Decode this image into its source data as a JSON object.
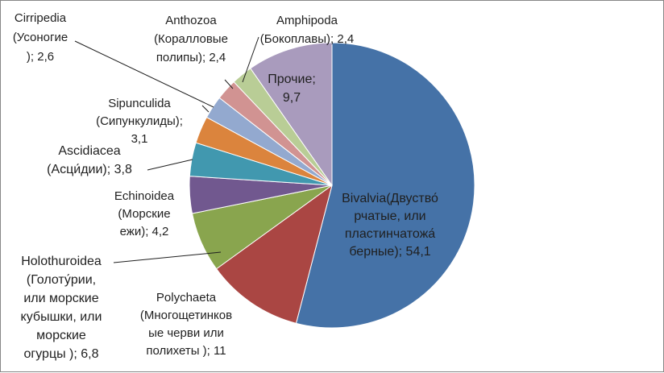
{
  "chart_data": {
    "type": "pie",
    "start_angle_deg": 0,
    "direction": "clockwise",
    "slices": [
      {
        "key": "bivalvia",
        "value": 54.1,
        "color": "#4572A7",
        "label_lines": [
          "Bivalvia(Двуство́",
          "рчатые, или",
          "пластинчатожа́",
          "берные); 54,1"
        ]
      },
      {
        "key": "polychaeta",
        "value": 11,
        "color": "#AA4643",
        "label_lines": [
          "Polychaeta",
          "(Многощетинков",
          "ые черви или",
          "полихеты ); 11"
        ]
      },
      {
        "key": "holothuroidea",
        "value": 6.8,
        "color": "#89A54E",
        "label_lines": [
          "Holothuroidea",
          "(Голоту́рии,",
          "или морские",
          "кубышки, или",
          "морские",
          "огурцы ); 6,8"
        ]
      },
      {
        "key": "echinoidea",
        "value": 4.2,
        "color": "#71588F",
        "label_lines": [
          "Echinoidea",
          "(Морские",
          "ежи); 4,2"
        ]
      },
      {
        "key": "ascidiacea",
        "value": 3.8,
        "color": "#4198AF",
        "label_lines": [
          "Ascidiacea",
          "(Асци́дии); 3,8"
        ]
      },
      {
        "key": "sipunculida",
        "value": 3.1,
        "color": "#DB843D",
        "label_lines": [
          "Sipunculida",
          "(Сипункулиды);",
          "3,1"
        ]
      },
      {
        "key": "cirripedia",
        "value": 2.6,
        "color": "#93A9CF",
        "label_lines": [
          "Cirripedia",
          "(Усоногие",
          "); 2,6"
        ]
      },
      {
        "key": "anthozoa",
        "value": 2.4,
        "color": "#D19392",
        "label_lines": [
          "Anthozoa",
          "(Коралловые",
          "полипы); 2,4"
        ]
      },
      {
        "key": "amphipoda",
        "value": 2.4,
        "color": "#B9CD96",
        "label_lines": [
          "Amphipoda",
          "(Бокоплавы); 2,4"
        ]
      },
      {
        "key": "other",
        "value": 9.7,
        "color": "#A99BBD",
        "label_lines": [
          "Прочие;",
          "9,7"
        ]
      }
    ]
  }
}
